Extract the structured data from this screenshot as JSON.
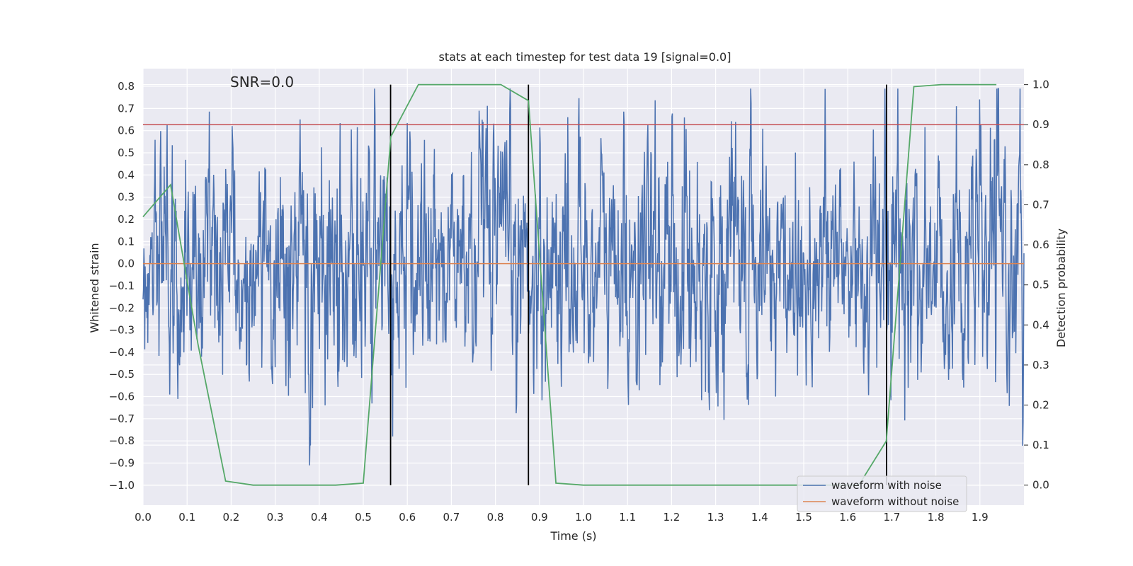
{
  "chart_data": {
    "type": "line",
    "title": "stats at each timestep for test data 19 [signal=0.0]",
    "annotation": "SNR=0.0",
    "xlabel": "Time (s)",
    "ylabel_left": "Whitened strain",
    "ylabel_right": "Detection probability",
    "xlim": [
      0.0,
      2.0
    ],
    "ylim_left": [
      -1.09,
      0.88
    ],
    "ylim_right": [
      -0.05,
      1.04
    ],
    "x_ticks": [
      "0.0",
      "0.1",
      "0.2",
      "0.3",
      "0.4",
      "0.5",
      "0.6",
      "0.7",
      "0.8",
      "0.9",
      "1.0",
      "1.1",
      "1.2",
      "1.3",
      "1.4",
      "1.5",
      "1.6",
      "1.7",
      "1.8",
      "1.9"
    ],
    "y_ticks_left": [
      "0.8",
      "0.7",
      "0.6",
      "0.5",
      "0.4",
      "0.3",
      "0.2",
      "0.1",
      "0.0",
      "−0.1",
      "−0.2",
      "−0.3",
      "−0.4",
      "−0.5",
      "−0.6",
      "−0.7",
      "−0.8",
      "−0.9",
      "−1.0"
    ],
    "y_ticks_right": [
      "1.0",
      "0.9",
      "0.8",
      "0.7",
      "0.6",
      "0.5",
      "0.4",
      "0.3",
      "0.2",
      "0.1",
      "0.0"
    ],
    "threshold": 0.9,
    "vertical_lines": [
      0.562,
      0.875,
      1.688
    ],
    "series": [
      {
        "name": "waveform with noise",
        "color": "#4c72b0",
        "kind": "noise",
        "samples": 2048,
        "amplitude_std": 0.27,
        "x_range": [
          0.0,
          2.0
        ]
      },
      {
        "name": "waveform without noise",
        "color": "#dd8452",
        "x": [
          0.0,
          2.0
        ],
        "y": [
          0.0,
          0.0
        ]
      },
      {
        "name": "detection probability",
        "color": "#55a868",
        "axis": "right",
        "x": [
          0.0,
          0.0625,
          0.125,
          0.1875,
          0.25,
          0.3125,
          0.375,
          0.4375,
          0.5,
          0.5625,
          0.625,
          0.6875,
          0.75,
          0.8125,
          0.875,
          0.9375,
          1.0,
          1.0625,
          1.125,
          1.1875,
          1.25,
          1.3125,
          1.375,
          1.4375,
          1.5,
          1.5625,
          1.625,
          1.6875,
          1.75,
          1.8125,
          1.875,
          1.9375
        ],
        "y": [
          0.67,
          0.75,
          0.35,
          0.01,
          0.0,
          0.0,
          0.0,
          0.0,
          0.005,
          0.87,
          1.0,
          1.0,
          1.0,
          1.0,
          0.96,
          0.005,
          0.0,
          0.0,
          0.0,
          0.0,
          0.0,
          0.0,
          0.0,
          0.0,
          0.0,
          0.0,
          0.0,
          0.11,
          0.995,
          1.0,
          1.0,
          1.0
        ]
      },
      {
        "name": "threshold",
        "color": "#c44e52",
        "axis": "right",
        "x": [
          0.0,
          2.0
        ],
        "y": [
          0.9,
          0.9
        ]
      }
    ],
    "legend": {
      "position": "lower-right",
      "entries": [
        {
          "label": "waveform with noise",
          "color": "#4c72b0"
        },
        {
          "label": "waveform without noise",
          "color": "#dd8452"
        }
      ]
    },
    "grid": true,
    "background_color": "#eaeaf2"
  }
}
